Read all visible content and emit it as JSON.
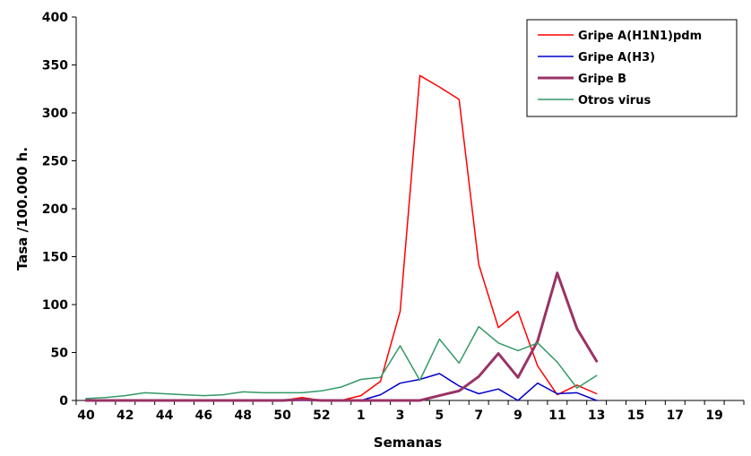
{
  "chart_data": {
    "type": "line",
    "xlabel": "Semanas",
    "ylabel": "Tasa /100.000 h.",
    "ylim": [
      0,
      400
    ],
    "y_ticks": [
      0,
      50,
      100,
      150,
      200,
      250,
      300,
      350,
      400
    ],
    "grid": false,
    "legend_position": "top-right",
    "categories": [
      "40",
      "41",
      "42",
      "43",
      "44",
      "45",
      "46",
      "47",
      "48",
      "49",
      "50",
      "51",
      "52",
      "53",
      "1",
      "2",
      "3",
      "4",
      "5",
      "6",
      "7",
      "8",
      "9",
      "10",
      "11",
      "12",
      "13",
      "14",
      "15",
      "16",
      "17",
      "18",
      "19",
      "20"
    ],
    "x_tick_labels": [
      "40",
      "42",
      "44",
      "46",
      "48",
      "50",
      "52",
      "1",
      "3",
      "5",
      "7",
      "9",
      "11",
      "13",
      "15",
      "17",
      "19"
    ],
    "series": [
      {
        "name": "Gripe A(H1N1)pdm",
        "color": "#ff0000",
        "stroke_width": 1.5,
        "values": [
          0,
          0,
          0,
          0,
          0,
          0,
          0,
          0,
          0,
          0,
          0,
          3,
          0,
          0,
          5,
          20,
          93,
          339,
          327,
          314,
          142,
          76,
          93,
          36,
          6,
          16,
          7,
          null,
          null,
          null,
          null,
          null,
          null,
          null
        ]
      },
      {
        "name": "Gripe A(H3)",
        "color": "#0000cc",
        "stroke_width": 1.5,
        "values": [
          0,
          0,
          0,
          0,
          0,
          0,
          0,
          0,
          0,
          0,
          0,
          0,
          0,
          0,
          0,
          6,
          18,
          22,
          28,
          15,
          7,
          12,
          0,
          18,
          7,
          8,
          0,
          null,
          null,
          null,
          null,
          null,
          null,
          null
        ]
      },
      {
        "name": "Gripe B",
        "color": "#993366",
        "stroke_width": 3,
        "values": [
          0,
          0,
          0,
          0,
          0,
          0,
          0,
          0,
          0,
          0,
          0,
          1,
          0,
          0,
          0,
          0,
          0,
          0,
          5,
          10,
          25,
          49,
          24,
          62,
          133,
          75,
          41,
          null,
          null,
          null,
          null,
          null,
          null,
          null
        ]
      },
      {
        "name": "Otros virus",
        "color": "#339966",
        "stroke_width": 1.5,
        "values": [
          2,
          3,
          5,
          8,
          7,
          6,
          5,
          6,
          9,
          8,
          8,
          8,
          10,
          14,
          22,
          24,
          57,
          21,
          64,
          39,
          77,
          60,
          52,
          60,
          40,
          13,
          26,
          null,
          null,
          null,
          null,
          null,
          null,
          null
        ]
      }
    ]
  }
}
